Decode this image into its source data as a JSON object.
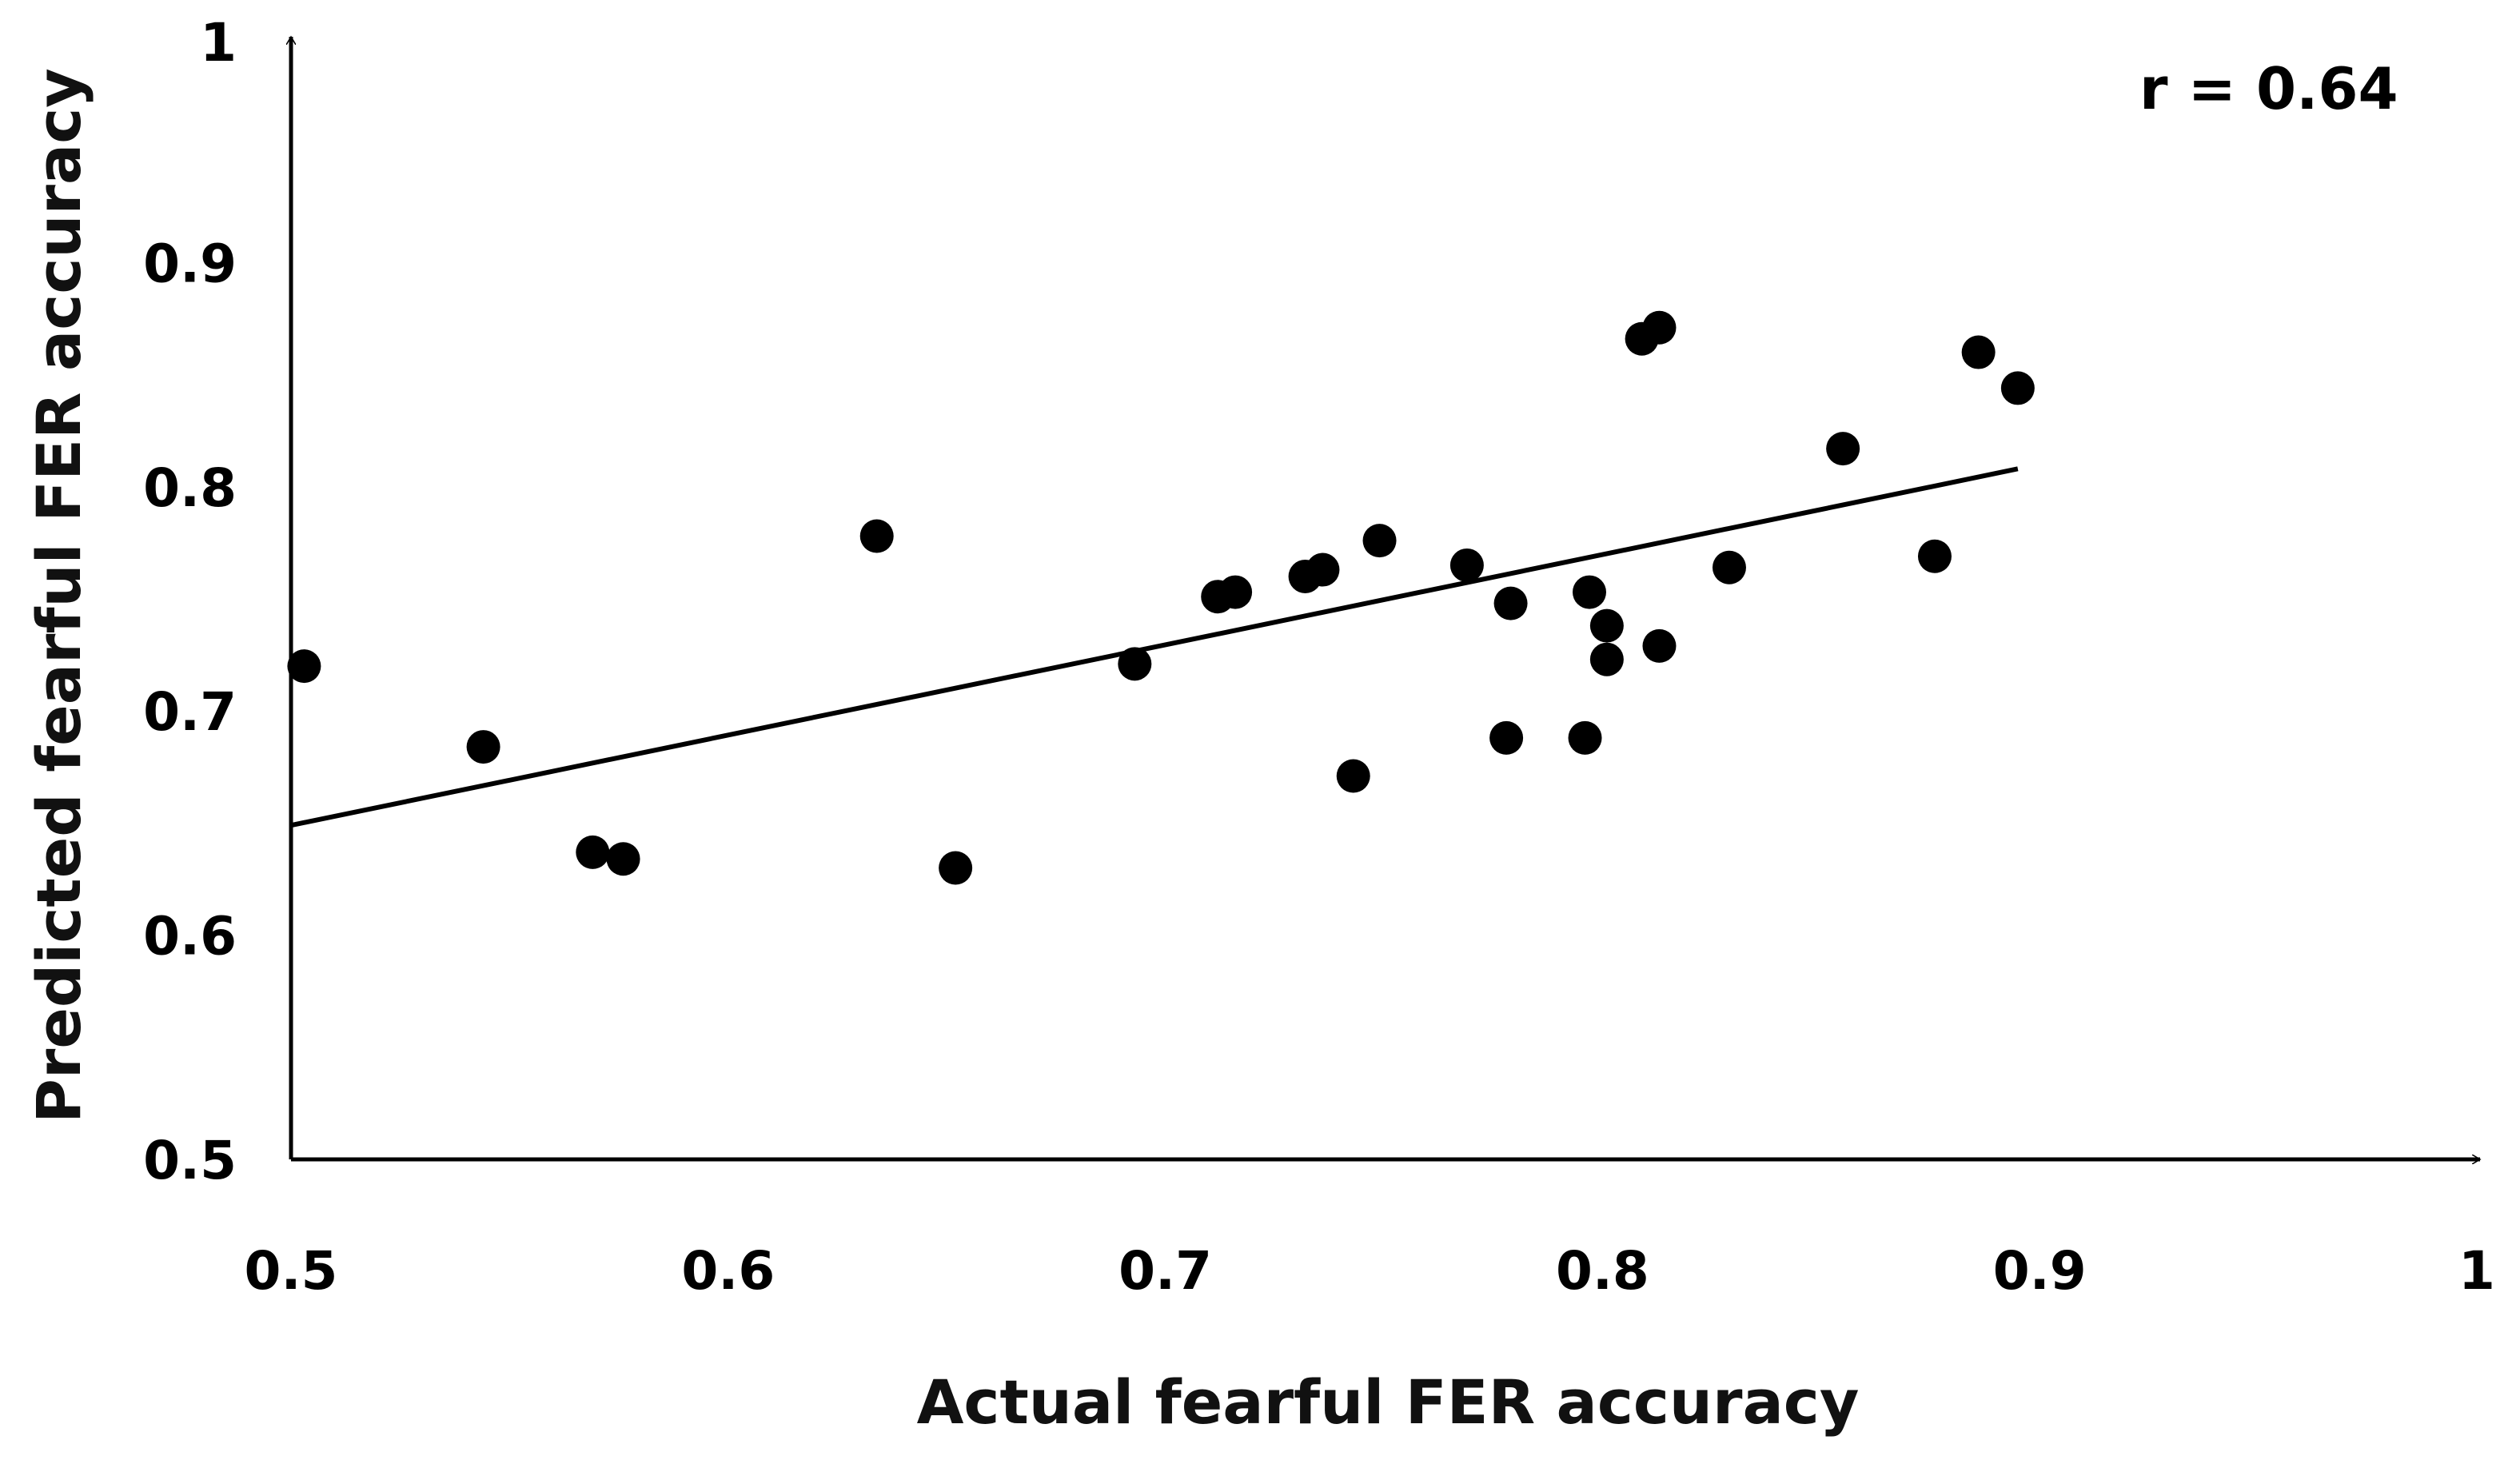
{
  "chart_data": {
    "type": "scatter",
    "xlabel": "Actual fearful FER accuracy",
    "ylabel": "Predicted fearful FER accuracy",
    "xlim": [
      0.5,
      1
    ],
    "ylim": [
      0.5,
      1
    ],
    "x_ticks": [
      "0.5",
      "0.6",
      "0.7",
      "0.8",
      "0.9",
      "1"
    ],
    "y_ticks": [
      "0.5",
      "0.6",
      "0.7",
      "0.8",
      "0.9",
      "1"
    ],
    "annotation": "r = 0.64",
    "grid": false,
    "legend": "none",
    "marker_color": "#000000",
    "series": [
      {
        "points": [
          {
            "x": 0.503,
            "y": 0.72
          },
          {
            "x": 0.544,
            "y": 0.684
          },
          {
            "x": 0.569,
            "y": 0.637
          },
          {
            "x": 0.576,
            "y": 0.634
          },
          {
            "x": 0.634,
            "y": 0.778
          },
          {
            "x": 0.652,
            "y": 0.63
          },
          {
            "x": 0.693,
            "y": 0.721
          },
          {
            "x": 0.712,
            "y": 0.751
          },
          {
            "x": 0.716,
            "y": 0.753
          },
          {
            "x": 0.732,
            "y": 0.76
          },
          {
            "x": 0.736,
            "y": 0.763
          },
          {
            "x": 0.743,
            "y": 0.671
          },
          {
            "x": 0.749,
            "y": 0.776
          },
          {
            "x": 0.769,
            "y": 0.765
          },
          {
            "x": 0.778,
            "y": 0.688
          },
          {
            "x": 0.779,
            "y": 0.748
          },
          {
            "x": 0.796,
            "y": 0.688
          },
          {
            "x": 0.797,
            "y": 0.753
          },
          {
            "x": 0.801,
            "y": 0.738
          },
          {
            "x": 0.801,
            "y": 0.723
          },
          {
            "x": 0.809,
            "y": 0.866
          },
          {
            "x": 0.813,
            "y": 0.871
          },
          {
            "x": 0.813,
            "y": 0.729
          },
          {
            "x": 0.829,
            "y": 0.764
          },
          {
            "x": 0.855,
            "y": 0.817
          },
          {
            "x": 0.876,
            "y": 0.769
          },
          {
            "x": 0.886,
            "y": 0.86
          },
          {
            "x": 0.895,
            "y": 0.844
          }
        ]
      }
    ],
    "trendline": {
      "x": [
        0.5,
        0.895
      ],
      "y": [
        0.649,
        0.808
      ]
    }
  }
}
